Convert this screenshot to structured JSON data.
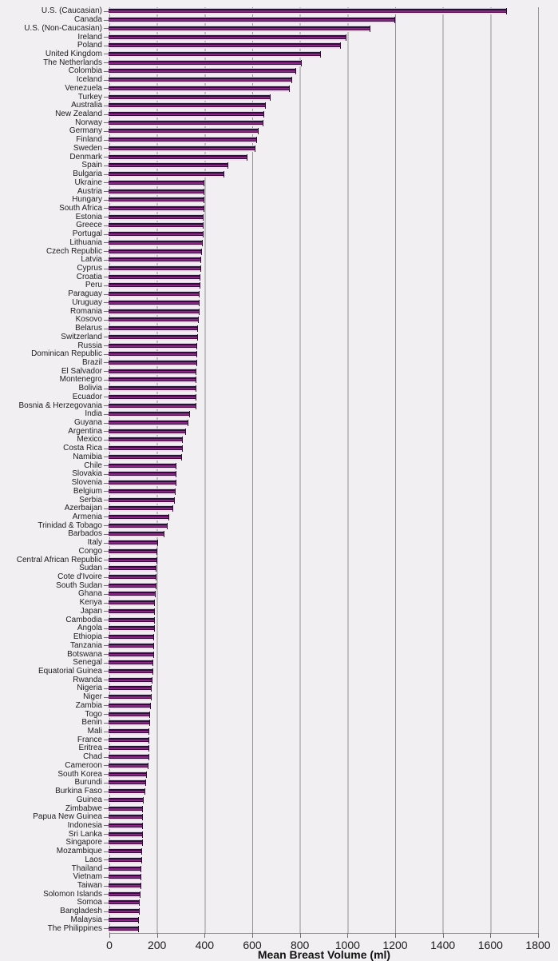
{
  "chart_data": {
    "type": "bar",
    "orientation": "horizontal",
    "title": "",
    "xlabel": "Mean Breast Volume (ml)",
    "ylabel": "",
    "xlim": [
      0,
      1800
    ],
    "x_ticks": [
      0,
      200,
      400,
      600,
      800,
      1000,
      1200,
      1400,
      1600,
      1800
    ],
    "grid": true,
    "legend": "none",
    "bar_colors": {
      "highlight": "#d6cfe0",
      "outline": "#2b0e35",
      "body": "#8e2486",
      "base": "#f3dcec"
    },
    "background": "#f1eff1",
    "gridline_color": "#949294",
    "categories": [
      "U.S. (Caucasian)",
      "Canada",
      "U.S. (Non-Caucasian)",
      "Ireland",
      "Poland",
      "United Kingdom",
      "The Netherlands",
      "Colombia",
      "Iceland",
      "Venezuela",
      "Turkey",
      "Australia",
      "New Zealand",
      "Norway",
      "Germany",
      "Finland",
      "Sweden",
      "Denmark",
      "Spain",
      "Bulgaria",
      "Ukraine",
      "Austria",
      "Hungary",
      "South Africa",
      "Estonia",
      "Greece",
      "Portugal",
      "Lithuania",
      "Czech Republic",
      "Latvia",
      "Cyprus",
      "Croatia",
      "Peru",
      "Paraguay",
      "Uruguay",
      "Romania",
      "Kosovo",
      "Belarus",
      "Switzerland",
      "Russia",
      "Dominican Republic",
      "Brazil",
      "El Salvador",
      "Montenegro",
      "Bolivia",
      "Ecuador",
      "Bosnia & Herzegovania",
      "India",
      "Guyana",
      "Argentina",
      "Mexico",
      "Costa Rica",
      "Namibia",
      "Chile",
      "Slovakia",
      "Slovenia",
      "Belgium",
      "Serbia",
      "Azerbaijan",
      "Armenia",
      "Trinidad & Tobago",
      "Barbados",
      "Italy",
      "Congo",
      "Central African Republic",
      "Sudan",
      "Cote d'Ivoire",
      "South Sudan",
      "Ghana",
      "Kenya",
      "Japan",
      "Cambodia",
      "Angola",
      "Ethiopia",
      "Tanzania",
      "Botswana",
      "Senegal",
      "Equatorial Guinea",
      "Rwanda",
      "Nigeria",
      "Niger",
      "Zambia",
      "Togo",
      "Benin",
      "Mali",
      "France",
      "Eritrea",
      "Chad",
      "Cameroon",
      "South Korea",
      "Burundi",
      "Burkina Faso",
      "Guinea",
      "Zimbabwe",
      "Papua New Guinea",
      "Indonesia",
      "Sri Lanka",
      "Singapore",
      "Mozambique",
      "Laos",
      "Thailand",
      "Vietnam",
      "Taiwan",
      "Solomon Islands",
      "Somoa",
      "Bangladesh",
      "Malaysia",
      "The Philippines"
    ],
    "values": [
      1670,
      1200,
      1095,
      995,
      973,
      887,
      807,
      786,
      766,
      758,
      678,
      657,
      650,
      647,
      627,
      619,
      612,
      579,
      500,
      482,
      400,
      400,
      399,
      398,
      396,
      395,
      394,
      393,
      390,
      387,
      386,
      383,
      381,
      380,
      379,
      378,
      376,
      372,
      371,
      370,
      370,
      369,
      367,
      366,
      366,
      365,
      365,
      340,
      332,
      322,
      310,
      309,
      305,
      283,
      282,
      280,
      278,
      276,
      268,
      250,
      246,
      230,
      203,
      202,
      201,
      199,
      198,
      197,
      193,
      191,
      190,
      190,
      190,
      189,
      188,
      188,
      185,
      185,
      181,
      178,
      176,
      175,
      171,
      170,
      168,
      168,
      167,
      166,
      163,
      158,
      153,
      151,
      145,
      142,
      142,
      141,
      140,
      140,
      139,
      138,
      135,
      134,
      133,
      132,
      128,
      127,
      124,
      123
    ]
  }
}
